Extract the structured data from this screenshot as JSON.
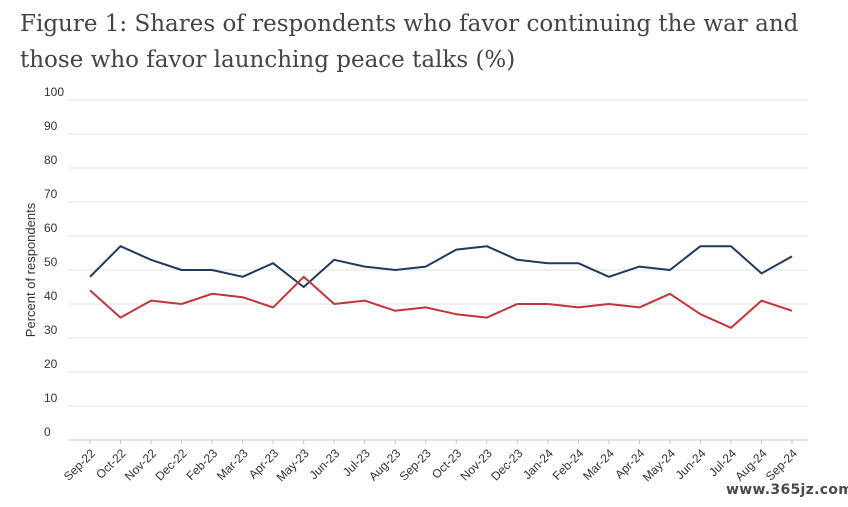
{
  "chart_data": {
    "type": "line",
    "title": "Figure 1: Shares of respondents who favor continuing the war and those who favor launching peace talks (%)",
    "xlabel": "",
    "ylabel": "Percent of respondents",
    "ylim": [
      0,
      100
    ],
    "yticks": [
      0,
      10,
      20,
      30,
      40,
      50,
      60,
      70,
      80,
      90,
      100
    ],
    "grid": true,
    "categories": [
      "Sep-22",
      "Oct-22",
      "Nov-22",
      "Dec-22",
      "Feb-23",
      "Mar-23",
      "Apr-23",
      "May-23",
      "Jun-23",
      "Jul-23",
      "Aug-23",
      "Sep-23",
      "Oct-23",
      "Nov-23",
      "Dec-23",
      "Jan-24",
      "Feb-24",
      "Mar-24",
      "Apr-24",
      "May-24",
      "Jun-24",
      "Jul-24",
      "Aug-24",
      "Sep-24"
    ],
    "series": [
      {
        "color": "#1f3a5f",
        "values": [
          48,
          57,
          53,
          50,
          50,
          48,
          52,
          45,
          53,
          51,
          50,
          51,
          56,
          57,
          53,
          52,
          52,
          48,
          51,
          50,
          57,
          57,
          49,
          54
        ]
      },
      {
        "color": "#c0363c",
        "values": [
          44,
          36,
          41,
          40,
          43,
          42,
          39,
          48,
          40,
          41,
          38,
          39,
          37,
          36,
          40,
          40,
          39,
          40,
          39,
          43,
          37,
          33,
          41,
          38
        ]
      }
    ]
  },
  "watermark": "www.365jz.com"
}
